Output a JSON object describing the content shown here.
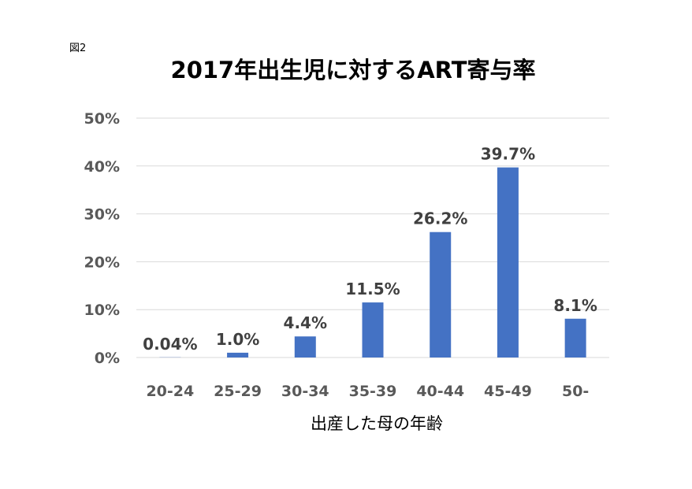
{
  "figure_label": "図2",
  "chart_data": {
    "type": "bar",
    "title": "2017年出生児に対するART寄与率",
    "xlabel": "出産した母の年齢",
    "ylabel": "",
    "categories": [
      "20-24",
      "25-29",
      "30-34",
      "35-39",
      "40-44",
      "45-49",
      "50-"
    ],
    "values": [
      0.04,
      1.0,
      4.4,
      11.5,
      26.2,
      39.7,
      8.1
    ],
    "data_labels": [
      "0.04%",
      "1.0%",
      "4.4%",
      "11.5%",
      "26.2%",
      "39.7%",
      "8.1%"
    ],
    "ylim": [
      0,
      50
    ],
    "yticks": [
      0,
      10,
      20,
      30,
      40,
      50
    ],
    "ytick_labels": [
      "0%",
      "10%",
      "20%",
      "30%",
      "40%",
      "50%"
    ],
    "grid": true,
    "legend": "none",
    "colors": {
      "bar": "#4472C4",
      "grid": "#D9D9D9",
      "axis": "#D9D9D9"
    }
  }
}
